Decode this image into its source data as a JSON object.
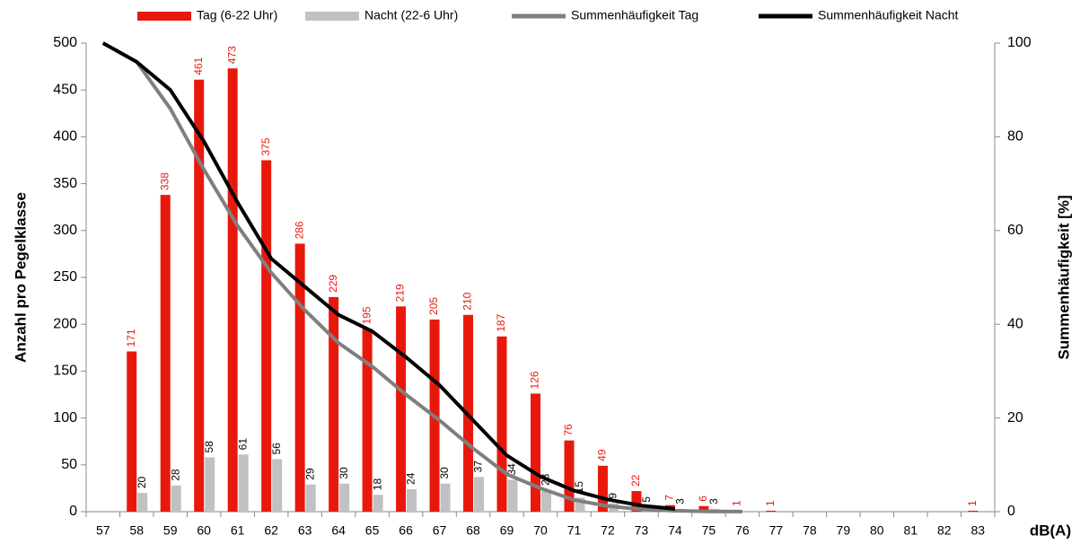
{
  "chart_data": {
    "type": "bar+line",
    "x_label": "dB(A)",
    "y_label": "Anzahl pro Pegelklasse",
    "y2_label": "Summenhäufigkeit [%]",
    "categories": [
      "57",
      "58",
      "59",
      "60",
      "61",
      "62",
      "63",
      "64",
      "65",
      "66",
      "67",
      "68",
      "69",
      "70",
      "71",
      "72",
      "73",
      "74",
      "75",
      "76",
      "77",
      "78",
      "79",
      "80",
      "81",
      "82",
      "83"
    ],
    "series": [
      {
        "name": "Tag (6-22 Uhr)",
        "type": "bar",
        "color": "#e8190c",
        "label_color": "#e8190c",
        "values": [
          null,
          171,
          338,
          461,
          473,
          375,
          286,
          229,
          195,
          219,
          205,
          210,
          187,
          126,
          76,
          49,
          22,
          7,
          6,
          1,
          1,
          null,
          null,
          null,
          null,
          null,
          1
        ]
      },
      {
        "name": "Nacht (22-6 Uhr)",
        "type": "bar",
        "color": "#bfc1c3",
        "label_color": "#000000",
        "values": [
          null,
          20,
          28,
          58,
          61,
          56,
          29,
          30,
          18,
          24,
          30,
          37,
          34,
          23,
          15,
          9,
          5,
          3,
          3,
          null,
          null,
          null,
          null,
          null,
          null,
          null,
          null
        ]
      },
      {
        "name": "Summenhäufigkeit Tag",
        "type": "line",
        "axis": "y2",
        "color": "#7f7f7f",
        "values": [
          100,
          96,
          86,
          73,
          61,
          51,
          43,
          36,
          31,
          25,
          19.5,
          13.5,
          8,
          5,
          2.5,
          1.2,
          0.5,
          0.2,
          0.05,
          0.02,
          null,
          null,
          null,
          null,
          null,
          null,
          null
        ]
      },
      {
        "name": "Summenhäufigkeit Nacht",
        "type": "line",
        "axis": "y2",
        "color": "#000000",
        "values": [
          100,
          96,
          90,
          79,
          66,
          54,
          48,
          42,
          38.5,
          33,
          27,
          19.5,
          12,
          7.5,
          4.5,
          2.6,
          1.3,
          0.6,
          null,
          null,
          null,
          null,
          null,
          null,
          null,
          null,
          null
        ]
      }
    ],
    "ylim": [
      0,
      500
    ],
    "yticks": [
      0,
      50,
      100,
      150,
      200,
      250,
      300,
      350,
      400,
      450,
      500
    ],
    "y2lim": [
      0,
      100
    ],
    "y2ticks": [
      0,
      20,
      40,
      60,
      80,
      100
    ],
    "grid": false,
    "legend": "top"
  }
}
